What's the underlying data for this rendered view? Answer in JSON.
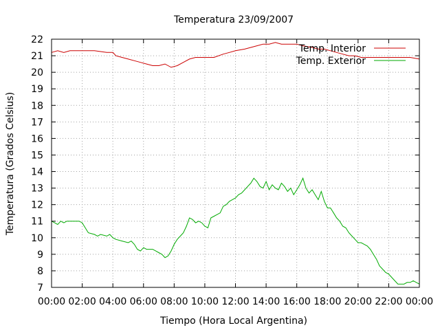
{
  "chart_data": {
    "type": "line",
    "title": "Temperatura 23/09/2007",
    "xlabel": "Tiempo (Hora Local Argentina)",
    "ylabel": "Temperatura (Grados Celsius)",
    "xlim": [
      0,
      24
    ],
    "ylim": [
      7,
      22
    ],
    "grid": true,
    "legend_position": "top-right",
    "x_ticks": [
      {
        "value": 0,
        "label": "00:00"
      },
      {
        "value": 2,
        "label": "02:00"
      },
      {
        "value": 4,
        "label": "04:00"
      },
      {
        "value": 6,
        "label": "06:00"
      },
      {
        "value": 8,
        "label": "08:00"
      },
      {
        "value": 10,
        "label": "10:00"
      },
      {
        "value": 12,
        "label": "12:00"
      },
      {
        "value": 14,
        "label": "14:00"
      },
      {
        "value": 16,
        "label": "16:00"
      },
      {
        "value": 18,
        "label": "18:00"
      },
      {
        "value": 20,
        "label": "20:00"
      },
      {
        "value": 22,
        "label": "22:00"
      },
      {
        "value": 24,
        "label": "00:00"
      }
    ],
    "y_ticks": [
      {
        "value": 7,
        "label": "7"
      },
      {
        "value": 8,
        "label": "8"
      },
      {
        "value": 9,
        "label": "9"
      },
      {
        "value": 10,
        "label": "10"
      },
      {
        "value": 11,
        "label": "11"
      },
      {
        "value": 12,
        "label": "12"
      },
      {
        "value": 13,
        "label": "13"
      },
      {
        "value": 14,
        "label": "14"
      },
      {
        "value": 15,
        "label": "15"
      },
      {
        "value": 16,
        "label": "16"
      },
      {
        "value": 17,
        "label": "17"
      },
      {
        "value": 18,
        "label": "18"
      },
      {
        "value": 19,
        "label": "19"
      },
      {
        "value": 20,
        "label": "20"
      },
      {
        "value": 21,
        "label": "21"
      },
      {
        "value": 22,
        "label": "22"
      }
    ],
    "series": [
      {
        "name": "Temp. Interior",
        "color": "#cc0000",
        "x": [
          0,
          0.4,
          0.8,
          1.2,
          2.0,
          2.8,
          3.6,
          4.0,
          4.2,
          4.6,
          5.0,
          5.4,
          5.8,
          6.2,
          6.6,
          7.0,
          7.4,
          7.8,
          8.2,
          8.6,
          9.0,
          9.4,
          10.0,
          10.6,
          11.2,
          11.6,
          12.0,
          12.6,
          13.0,
          13.4,
          13.8,
          14.2,
          14.6,
          15.0,
          15.4,
          16.0,
          16.4,
          17.0,
          17.4,
          17.8,
          18.2,
          18.6,
          19.0,
          19.4,
          19.8,
          20.2,
          21.0,
          21.8,
          22.6,
          23.4,
          24.0
        ],
        "y": [
          21.2,
          21.3,
          21.2,
          21.3,
          21.3,
          21.3,
          21.2,
          21.2,
          21.0,
          20.9,
          20.8,
          20.7,
          20.6,
          20.5,
          20.4,
          20.4,
          20.5,
          20.3,
          20.4,
          20.6,
          20.8,
          20.9,
          20.9,
          20.9,
          21.1,
          21.2,
          21.3,
          21.4,
          21.5,
          21.6,
          21.7,
          21.7,
          21.8,
          21.7,
          21.7,
          21.7,
          21.6,
          21.5,
          21.4,
          21.4,
          21.3,
          21.2,
          21.1,
          21.0,
          21.0,
          20.9,
          20.9,
          20.9,
          20.9,
          20.9,
          20.8
        ]
      },
      {
        "name": "Temp. Exterior",
        "color": "#00aa00",
        "x": [
          0,
          0.2,
          0.4,
          0.6,
          0.8,
          1.0,
          1.4,
          1.8,
          2.0,
          2.2,
          2.4,
          2.8,
          3.0,
          3.2,
          3.6,
          3.8,
          4.0,
          4.2,
          4.6,
          5.0,
          5.2,
          5.4,
          5.6,
          5.8,
          6.0,
          6.2,
          6.6,
          6.8,
          7.0,
          7.2,
          7.4,
          7.6,
          7.8,
          8.0,
          8.2,
          8.4,
          8.6,
          8.8,
          9.0,
          9.2,
          9.4,
          9.6,
          9.8,
          10.0,
          10.2,
          10.4,
          10.6,
          10.8,
          11.0,
          11.2,
          11.4,
          11.6,
          11.8,
          12.0,
          12.2,
          12.4,
          12.6,
          12.8,
          13.0,
          13.2,
          13.4,
          13.6,
          13.8,
          14.0,
          14.2,
          14.4,
          14.6,
          14.8,
          15.0,
          15.2,
          15.4,
          15.6,
          15.8,
          16.0,
          16.2,
          16.4,
          16.6,
          16.8,
          17.0,
          17.2,
          17.4,
          17.6,
          17.8,
          18.0,
          18.2,
          18.4,
          18.6,
          18.8,
          19.0,
          19.2,
          19.4,
          19.6,
          19.8,
          20.0,
          20.2,
          20.4,
          20.6,
          20.8,
          21.0,
          21.2,
          21.4,
          21.6,
          21.8,
          22.0,
          22.2,
          22.4,
          22.6,
          22.8,
          23.0,
          23.2,
          23.4,
          23.6,
          23.8,
          24.0
        ],
        "y": [
          11.0,
          10.9,
          10.8,
          11.0,
          10.9,
          11.0,
          11.0,
          11.0,
          10.9,
          10.6,
          10.3,
          10.2,
          10.1,
          10.2,
          10.1,
          10.2,
          10.0,
          9.9,
          9.8,
          9.7,
          9.8,
          9.6,
          9.3,
          9.2,
          9.4,
          9.3,
          9.3,
          9.2,
          9.1,
          9.0,
          8.8,
          8.9,
          9.2,
          9.6,
          9.9,
          10.1,
          10.3,
          10.7,
          11.2,
          11.1,
          10.9,
          11.0,
          10.9,
          10.7,
          10.6,
          11.2,
          11.3,
          11.4,
          11.5,
          11.9,
          12.0,
          12.2,
          12.3,
          12.4,
          12.6,
          12.7,
          12.9,
          13.1,
          13.3,
          13.6,
          13.4,
          13.1,
          13.0,
          13.4,
          12.9,
          13.2,
          13.0,
          12.9,
          13.3,
          13.1,
          12.8,
          13.0,
          12.6,
          12.9,
          13.2,
          13.6,
          13.0,
          12.7,
          12.9,
          12.6,
          12.3,
          12.8,
          12.2,
          11.8,
          11.8,
          11.5,
          11.2,
          11.0,
          10.7,
          10.6,
          10.3,
          10.1,
          9.9,
          9.7,
          9.7,
          9.6,
          9.5,
          9.3,
          9.0,
          8.7,
          8.3,
          8.1,
          7.9,
          7.8,
          7.6,
          7.4,
          7.2,
          7.2,
          7.2,
          7.3,
          7.3,
          7.4,
          7.3,
          7.2
        ]
      }
    ]
  }
}
